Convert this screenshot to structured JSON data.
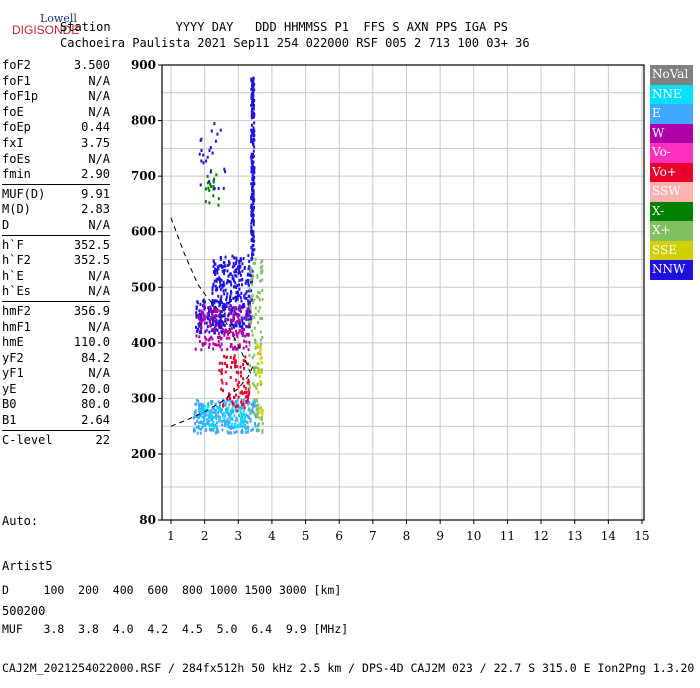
{
  "logo": {
    "line1": "Lowell",
    "line2": "DIGISONDE"
  },
  "header": {
    "line1": "Station         YYYY DAY   DDD HHMMSS P1  FFS S AXN PPS IGA PS",
    "line2": "Cachoeira Paulista 2021 Sep11 254 022000 RSF 005 2 713 100 03+ 36"
  },
  "params": {
    "g1": [
      [
        "foF2",
        "3.500"
      ],
      [
        "foF1",
        "N/A"
      ],
      [
        "foF1p",
        "N/A"
      ],
      [
        "foE",
        "N/A"
      ],
      [
        "foEp",
        "0.44"
      ],
      [
        "fxI",
        "3.75"
      ],
      [
        "foEs",
        "N/A"
      ],
      [
        "fmin",
        "2.90"
      ]
    ],
    "g2": [
      [
        "MUF(D)",
        "9.91"
      ],
      [
        "M(D)",
        "2.83"
      ],
      [
        "D",
        "N/A"
      ]
    ],
    "g3": [
      [
        "h`F",
        "352.5"
      ],
      [
        "h`F2",
        "352.5"
      ],
      [
        "h`E",
        "N/A"
      ],
      [
        "h`Es",
        "N/A"
      ]
    ],
    "g4": [
      [
        "hmF2",
        "356.9"
      ],
      [
        "hmF1",
        "N/A"
      ],
      [
        "hmE",
        "110.0"
      ],
      [
        "yF2",
        "84.2"
      ],
      [
        "yF1",
        "N/A"
      ],
      [
        "yE",
        "20.0"
      ],
      [
        "B0",
        "80.0"
      ],
      [
        "B1",
        "2.64"
      ]
    ],
    "g5": [
      [
        "C-level",
        "22"
      ]
    ]
  },
  "auto": {
    "l1": "Auto:",
    "l2": "Artist5",
    "l3": "500200"
  },
  "legend": [
    {
      "label": "NoVal",
      "color": "#808080"
    },
    {
      "label": "NNE",
      "color": "#00e0ff"
    },
    {
      "label": "E",
      "color": "#40a8ff"
    },
    {
      "label": "W",
      "color": "#b000a8"
    },
    {
      "label": "Vo-",
      "color": "#ff30c0"
    },
    {
      "label": "Vo+",
      "color": "#e8002a"
    },
    {
      "label": "SSW",
      "color": "#ffb0b0"
    },
    {
      "label": "X-",
      "color": "#008000"
    },
    {
      "label": "X+",
      "color": "#80c060"
    },
    {
      "label": "SSE",
      "color": "#d0d000"
    },
    {
      "label": "NNW",
      "color": "#2010e0"
    }
  ],
  "bottom": {
    "d_row": "D     100  200  400  600  800 1000 1500 3000 [km]",
    "muf_row": "MUF   3.8  3.8  4.0  4.2  4.5  5.0  6.4  9.9 [MHz]",
    "file_row": "CAJ2M_2021254022000.RSF / 284fx512h 50 kHz 2.5 km / DPS-4D CAJ2M 023 / 22.7 S 315.0 E Ion2Png 1.3.20"
  },
  "chart_data": {
    "type": "scatter",
    "title": "",
    "xlabel": "",
    "ylabel": "",
    "xlim": [
      1,
      15
    ],
    "ylim": [
      80,
      900
    ],
    "x_ticks": [
      1,
      2,
      3,
      4,
      5,
      6,
      7,
      8,
      9,
      10,
      11,
      12,
      13,
      14,
      15
    ],
    "y_ticks": [
      80,
      200,
      300,
      400,
      500,
      600,
      700,
      800,
      900
    ],
    "grid": true,
    "clusters": [
      {
        "name": "NNW",
        "x": [
          3.35,
          3.45
        ],
        "y": [
          560,
          880
        ],
        "n": 220
      },
      {
        "name": "NNW",
        "x": [
          2.2,
          3.4
        ],
        "y": [
          430,
          560
        ],
        "n": 320
      },
      {
        "name": "NNW",
        "x": [
          1.7,
          2.6
        ],
        "y": [
          420,
          480
        ],
        "n": 120
      },
      {
        "name": "W",
        "x": [
          1.7,
          3.3
        ],
        "y": [
          390,
          470
        ],
        "n": 160
      },
      {
        "name": "E",
        "x": [
          1.65,
          3.6
        ],
        "y": [
          240,
          300
        ],
        "n": 280
      },
      {
        "name": "NNE",
        "x": [
          1.8,
          3.2
        ],
        "y": [
          250,
          290
        ],
        "n": 70
      },
      {
        "name": "Vo+",
        "x": [
          2.4,
          3.3
        ],
        "y": [
          280,
          380
        ],
        "n": 90
      },
      {
        "name": "X+",
        "x": [
          3.3,
          3.7
        ],
        "y": [
          240,
          560
        ],
        "n": 110
      },
      {
        "name": "SSE",
        "x": [
          3.5,
          3.7
        ],
        "y": [
          260,
          400
        ],
        "n": 30
      },
      {
        "name": "X-",
        "x": [
          2.0,
          2.4
        ],
        "y": [
          650,
          720
        ],
        "n": 20
      },
      {
        "name": "NNW",
        "x": [
          1.8,
          2.6
        ],
        "y": [
          680,
          800
        ],
        "n": 25
      }
    ],
    "profile_curve": [
      [
        1.0,
        625
      ],
      [
        1.4,
        560
      ],
      [
        1.8,
        505
      ],
      [
        2.1,
        480
      ],
      [
        2.4,
        460
      ],
      [
        2.7,
        430
      ],
      [
        3.0,
        395
      ],
      [
        3.2,
        370
      ],
      [
        3.4,
        340
      ]
    ],
    "trace_lower": [
      [
        1.0,
        250
      ],
      [
        1.5,
        262
      ],
      [
        2.0,
        276
      ],
      [
        2.5,
        294
      ],
      [
        3.0,
        318
      ],
      [
        3.3,
        340
      ],
      [
        3.45,
        360
      ]
    ]
  }
}
